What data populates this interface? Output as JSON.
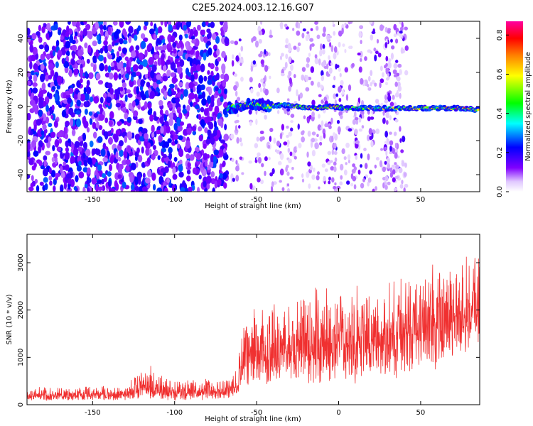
{
  "figure_title": "C2E5.2024.003.12.16.G07",
  "chart_data": [
    {
      "type": "heatmap",
      "title": "C2E5.2024.003.12.16.G07",
      "xlabel": "Height of straight line (km)",
      "ylabel": "Frequency (Hz)",
      "xlim": [
        -190,
        86
      ],
      "ylim": [
        -50,
        50
      ],
      "x_ticks": [
        -150,
        -100,
        -50,
        0,
        50
      ],
      "y_ticks": [
        -40,
        -20,
        0,
        20,
        40
      ],
      "colorbar": {
        "label": "Normalized spectral amplitude",
        "range": [
          0.0,
          0.87
        ],
        "ticks": [
          0.0,
          0.2,
          0.4,
          0.6,
          0.8
        ],
        "colormap": [
          "#ffffff",
          "#e0c8ff",
          "#8000ff",
          "#0000ff",
          "#00ffff",
          "#00ff00",
          "#ffff00",
          "#ff8000",
          "#ff0000",
          "#ff00a0"
        ]
      },
      "signal_track": {
        "description_free": false,
        "points": [
          {
            "x": -68,
            "y": -1,
            "amp": 0.45
          },
          {
            "x": -60,
            "y": 0,
            "amp": 0.5
          },
          {
            "x": -52,
            "y": 2,
            "amp": 0.55
          },
          {
            "x": -45,
            "y": 0,
            "amp": 0.5
          },
          {
            "x": -35,
            "y": 1,
            "amp": 0.45
          },
          {
            "x": -25,
            "y": 0,
            "amp": 0.55
          },
          {
            "x": -15,
            "y": -1,
            "amp": 0.6
          },
          {
            "x": -5,
            "y": 0,
            "amp": 0.65
          },
          {
            "x": 5,
            "y": -1,
            "amp": 0.5
          },
          {
            "x": 15,
            "y": -1,
            "amp": 0.5
          },
          {
            "x": 30,
            "y": -1,
            "amp": 0.55
          },
          {
            "x": 45,
            "y": -1,
            "amp": 0.6
          },
          {
            "x": 60,
            "y": -1,
            "amp": 0.6
          },
          {
            "x": 75,
            "y": -1,
            "amp": 0.65
          },
          {
            "x": 85,
            "y": -2,
            "amp": 0.6
          }
        ]
      },
      "background_noise": {
        "x_range": [
          -190,
          -68
        ],
        "amp": 0.25
      }
    },
    {
      "type": "line",
      "xlabel": "Height of straight line (km)",
      "ylabel": "SNR (10 * v/v)",
      "xlim": [
        -190,
        86
      ],
      "ylim": [
        0,
        3600
      ],
      "x_ticks": [
        -150,
        -100,
        -50,
        0,
        50
      ],
      "y_ticks": [
        0,
        1000,
        2000,
        3000
      ],
      "color": "#f03030",
      "envelope": {
        "x": [
          -190,
          -130,
          -125,
          -115,
          -105,
          -70,
          -62,
          -58,
          -45,
          -35,
          -22,
          -15,
          0,
          10,
          25,
          35,
          50,
          60,
          70,
          78,
          86
        ],
        "low": [
          80,
          80,
          100,
          120,
          80,
          100,
          150,
          300,
          400,
          500,
          500,
          300,
          500,
          400,
          600,
          500,
          800,
          700,
          1000,
          1100,
          1200
        ],
        "high": [
          380,
          420,
          650,
          850,
          600,
          550,
          800,
          1900,
          2600,
          2300,
          2600,
          2700,
          2600,
          2700,
          2700,
          2900,
          3000,
          3200,
          3300,
          3500,
          3400
        ]
      }
    }
  ]
}
